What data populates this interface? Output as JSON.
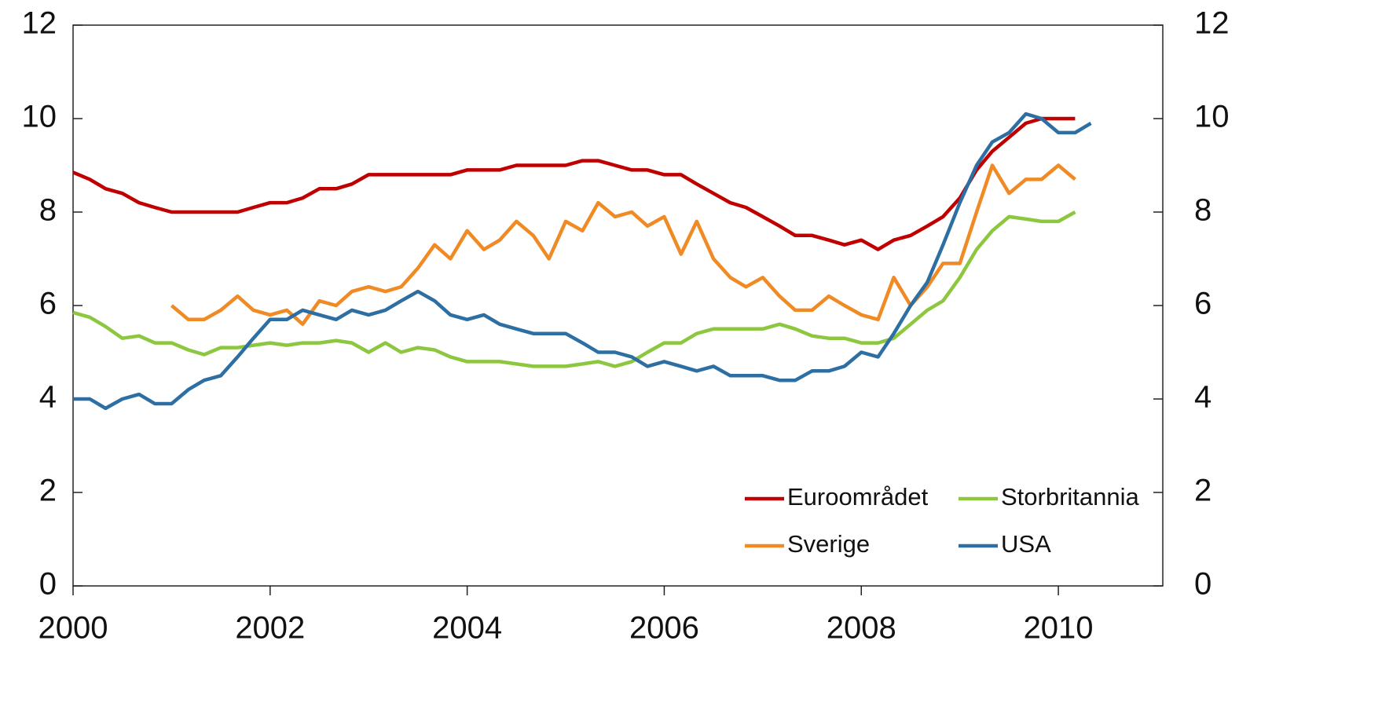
{
  "chart_data": {
    "type": "line",
    "x": [
      2000,
      2000.17,
      2000.33,
      2000.5,
      2000.67,
      2000.83,
      2001,
      2001.17,
      2001.33,
      2001.5,
      2001.67,
      2001.83,
      2002,
      2002.17,
      2002.33,
      2002.5,
      2002.67,
      2002.83,
      2003,
      2003.17,
      2003.33,
      2003.5,
      2003.67,
      2003.83,
      2004,
      2004.17,
      2004.33,
      2004.5,
      2004.67,
      2004.83,
      2005,
      2005.17,
      2005.33,
      2005.5,
      2005.67,
      2005.83,
      2006,
      2006.17,
      2006.33,
      2006.5,
      2006.67,
      2006.83,
      2007,
      2007.17,
      2007.33,
      2007.5,
      2007.67,
      2007.83,
      2008,
      2008.17,
      2008.33,
      2008.5,
      2008.67,
      2008.83,
      2009,
      2009.17,
      2009.33,
      2009.5,
      2009.67,
      2009.83,
      2010,
      2010.17,
      2010.33
    ],
    "series": [
      {
        "name": "Euroområdet",
        "color": "#c00000",
        "values": [
          8.85,
          8.7,
          8.5,
          8.4,
          8.2,
          8.1,
          8.0,
          8.0,
          8.0,
          8.0,
          8.0,
          8.1,
          8.2,
          8.2,
          8.3,
          8.5,
          8.5,
          8.6,
          8.8,
          8.8,
          8.8,
          8.8,
          8.8,
          8.8,
          8.9,
          8.9,
          8.9,
          9.0,
          9.0,
          9.0,
          9.0,
          9.1,
          9.1,
          9.0,
          8.9,
          8.9,
          8.8,
          8.8,
          8.6,
          8.4,
          8.2,
          8.1,
          7.9,
          7.7,
          7.5,
          7.5,
          7.4,
          7.3,
          7.4,
          7.2,
          7.4,
          7.5,
          7.7,
          7.9,
          8.3,
          8.9,
          9.3,
          9.6,
          9.9,
          10.0,
          10.0,
          10.0,
          null
        ]
      },
      {
        "name": "Storbritannia",
        "color": "#8dc63f",
        "values": [
          5.85,
          5.75,
          5.55,
          5.3,
          5.35,
          5.2,
          5.2,
          5.05,
          4.95,
          5.1,
          5.1,
          5.15,
          5.2,
          5.15,
          5.2,
          5.2,
          5.25,
          5.2,
          5.0,
          5.2,
          5.0,
          5.1,
          5.05,
          4.9,
          4.8,
          4.8,
          4.8,
          4.75,
          4.7,
          4.7,
          4.7,
          4.75,
          4.8,
          4.7,
          4.8,
          5.0,
          5.2,
          5.2,
          5.4,
          5.5,
          5.5,
          5.5,
          5.5,
          5.6,
          5.5,
          5.35,
          5.3,
          5.3,
          5.2,
          5.2,
          5.3,
          5.6,
          5.9,
          6.1,
          6.6,
          7.2,
          7.6,
          7.9,
          7.85,
          7.8,
          7.8,
          8.0,
          null
        ]
      },
      {
        "name": "Sverige",
        "color": "#f08a24",
        "values": [
          null,
          null,
          null,
          null,
          null,
          null,
          6.0,
          5.7,
          5.7,
          5.9,
          6.2,
          5.9,
          5.8,
          5.9,
          5.6,
          6.1,
          6.0,
          6.3,
          6.4,
          6.3,
          6.4,
          6.8,
          7.3,
          7.0,
          7.6,
          7.2,
          7.4,
          7.8,
          7.5,
          7.0,
          7.8,
          7.6,
          8.2,
          7.9,
          8.0,
          7.7,
          7.9,
          7.1,
          7.8,
          7.0,
          6.6,
          6.4,
          6.6,
          6.2,
          5.9,
          5.9,
          6.2,
          6.0,
          5.8,
          5.7,
          6.6,
          6.0,
          6.4,
          6.9,
          6.9,
          8.0,
          9.0,
          8.4,
          8.7,
          8.7,
          9.0,
          8.7,
          null
        ]
      },
      {
        "name": "USA",
        "color": "#2e6fa3",
        "values": [
          4.0,
          4.0,
          3.8,
          4.0,
          4.1,
          3.9,
          3.9,
          4.2,
          4.4,
          4.5,
          4.9,
          5.3,
          5.7,
          5.7,
          5.9,
          5.8,
          5.7,
          5.9,
          5.8,
          5.9,
          6.1,
          6.3,
          6.1,
          5.8,
          5.7,
          5.8,
          5.6,
          5.5,
          5.4,
          5.4,
          5.4,
          5.2,
          5.0,
          5.0,
          4.9,
          4.7,
          4.8,
          4.7,
          4.6,
          4.7,
          4.5,
          4.5,
          4.5,
          4.4,
          4.4,
          4.6,
          4.6,
          4.7,
          5.0,
          4.9,
          5.4,
          6.0,
          6.5,
          7.3,
          8.2,
          9.0,
          9.5,
          9.7,
          10.1,
          10.0,
          9.7,
          9.7,
          9.9
        ]
      }
    ],
    "xlim": [
      2000,
      2011.06
    ],
    "xticks": [
      2000,
      2002,
      2004,
      2006,
      2008,
      2010
    ],
    "ylim": [
      0,
      12
    ],
    "yticks": [
      0,
      2,
      4,
      6,
      8,
      10,
      12
    ],
    "y2lim": [
      0,
      12
    ],
    "y2ticks": [
      0,
      2,
      4,
      6,
      8,
      10,
      12
    ],
    "legend": "bottom-right"
  }
}
